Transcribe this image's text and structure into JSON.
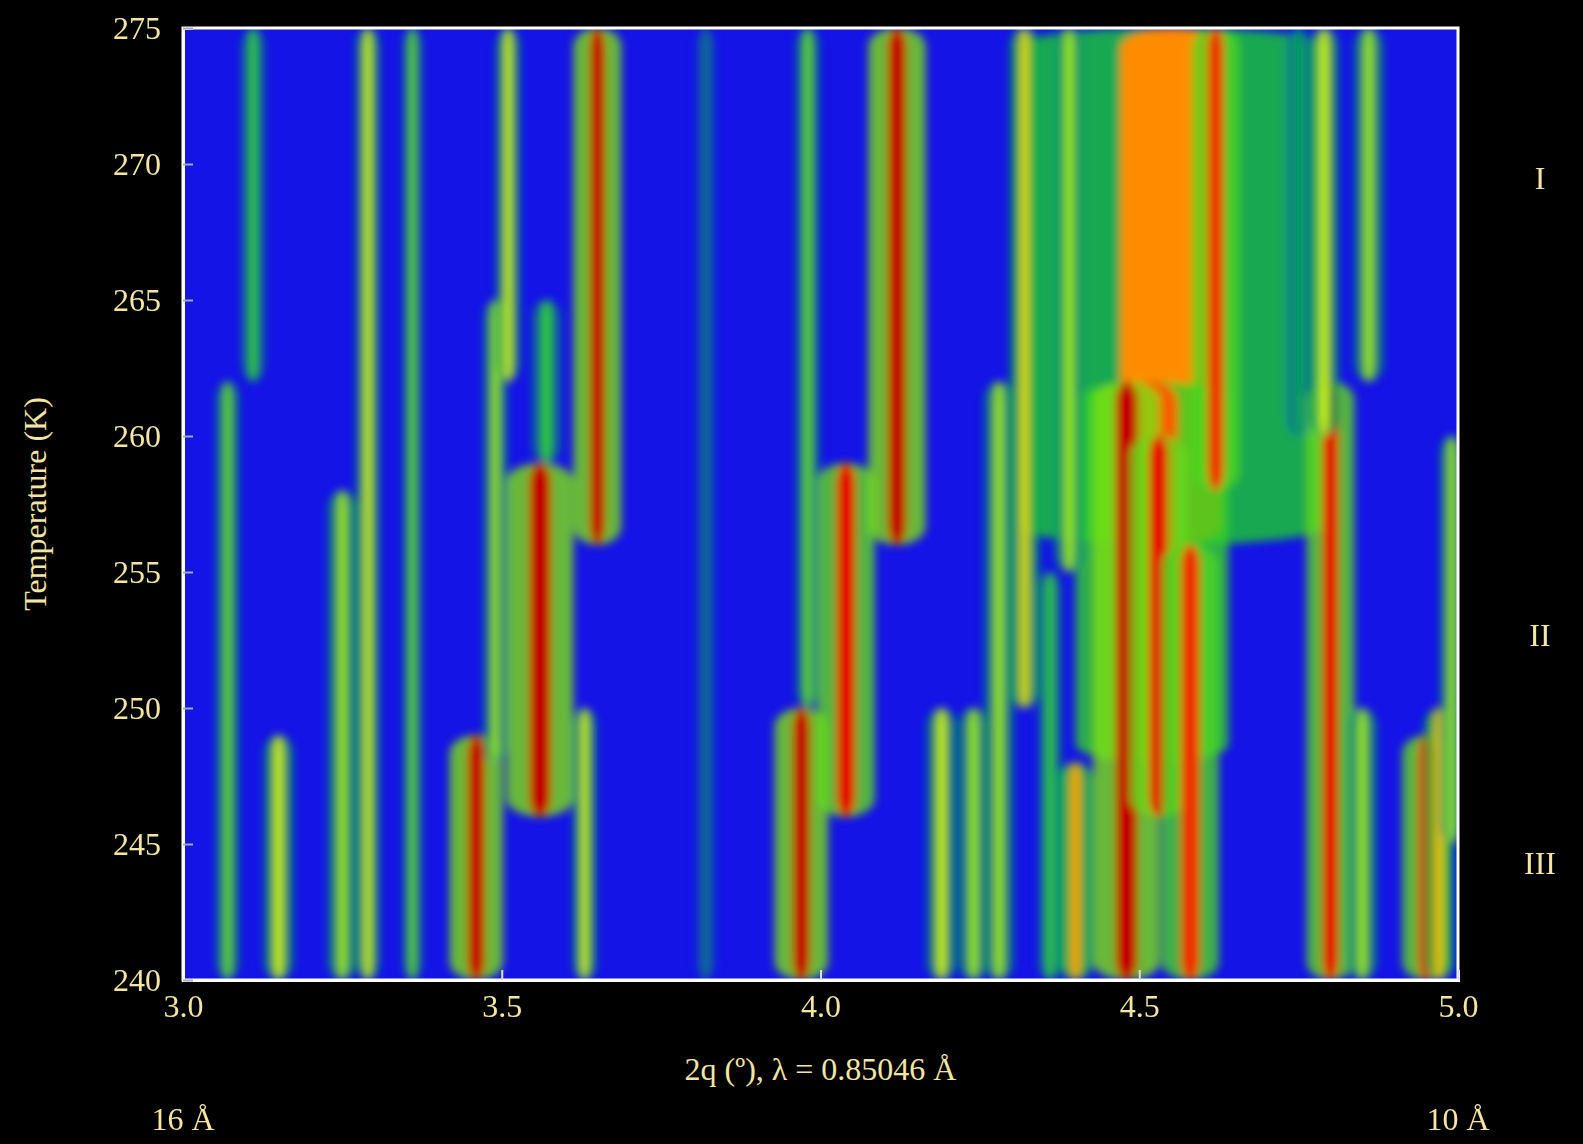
{
  "chart_data": {
    "type": "heatmap",
    "x_label": "2q  (º), λ = 0.85046 Å",
    "y_label": "Temperature (K)",
    "xlim": [
      3.0,
      5.0
    ],
    "ylim": [
      240,
      275
    ],
    "xticks": [
      {
        "value": 3.0,
        "label": "3.0"
      },
      {
        "value": 3.5,
        "label": "3.5"
      },
      {
        "value": 4.0,
        "label": "4.0"
      },
      {
        "value": 4.5,
        "label": "4.5"
      },
      {
        "value": 5.0,
        "label": "5.0"
      }
    ],
    "yticks": [
      240,
      245,
      250,
      255,
      260,
      265,
      270,
      275
    ],
    "zlim": [
      0,
      1
    ],
    "peaks": [
      {
        "x": 4.55,
        "t": [
          256,
          275
        ],
        "width": 0.16,
        "intensity": 0.75
      },
      {
        "x": 4.52,
        "t": [
          248,
          262
        ],
        "width": 0.08,
        "intensity": 0.8
      },
      {
        "x": 3.07,
        "t": [
          240,
          262
        ],
        "width": 0.012,
        "intensity": 0.45
      },
      {
        "x": 3.11,
        "t": [
          262,
          275
        ],
        "width": 0.012,
        "intensity": 0.4
      },
      {
        "x": 3.15,
        "t": [
          240,
          249
        ],
        "width": 0.015,
        "intensity": 0.55
      },
      {
        "x": 3.25,
        "t": [
          240,
          258
        ],
        "width": 0.015,
        "intensity": 0.5
      },
      {
        "x": 3.29,
        "t": [
          240,
          275
        ],
        "width": 0.012,
        "intensity": 0.55
      },
      {
        "x": 3.36,
        "t": [
          240,
          275
        ],
        "width": 0.01,
        "intensity": 0.45
      },
      {
        "x": 3.46,
        "t": [
          240,
          249
        ],
        "width": 0.028,
        "intensity": 0.95
      },
      {
        "x": 3.49,
        "t": [
          248,
          265
        ],
        "width": 0.012,
        "intensity": 0.5
      },
      {
        "x": 3.51,
        "t": [
          262,
          275
        ],
        "width": 0.012,
        "intensity": 0.55
      },
      {
        "x": 3.56,
        "t": [
          246,
          259
        ],
        "width": 0.035,
        "intensity": 0.95
      },
      {
        "x": 3.57,
        "t": [
          259,
          265
        ],
        "width": 0.015,
        "intensity": 0.4
      },
      {
        "x": 3.63,
        "t": [
          240,
          250
        ],
        "width": 0.012,
        "intensity": 0.55
      },
      {
        "x": 3.65,
        "t": [
          256,
          275
        ],
        "width": 0.025,
        "intensity": 0.95
      },
      {
        "x": 3.82,
        "t": [
          240,
          275
        ],
        "width": 0.01,
        "intensity": 0.2
      },
      {
        "x": 3.97,
        "t": [
          240,
          250
        ],
        "width": 0.028,
        "intensity": 0.95
      },
      {
        "x": 3.98,
        "t": [
          250,
          275
        ],
        "width": 0.012,
        "intensity": 0.45
      },
      {
        "x": 4.04,
        "t": [
          246,
          259
        ],
        "width": 0.03,
        "intensity": 0.9
      },
      {
        "x": 4.12,
        "t": [
          256,
          275
        ],
        "width": 0.03,
        "intensity": 0.95
      },
      {
        "x": 4.19,
        "t": [
          240,
          250
        ],
        "width": 0.015,
        "intensity": 0.55
      },
      {
        "x": 4.24,
        "t": [
          240,
          250
        ],
        "width": 0.015,
        "intensity": 0.5
      },
      {
        "x": 4.28,
        "t": [
          240,
          262
        ],
        "width": 0.015,
        "intensity": 0.5
      },
      {
        "x": 4.32,
        "t": [
          250,
          275
        ],
        "width": 0.015,
        "intensity": 0.6
      },
      {
        "x": 4.36,
        "t": [
          240,
          255
        ],
        "width": 0.012,
        "intensity": 0.4
      },
      {
        "x": 4.39,
        "t": [
          255,
          275
        ],
        "width": 0.015,
        "intensity": 0.5
      },
      {
        "x": 4.4,
        "t": [
          240,
          248
        ],
        "width": 0.018,
        "intensity": 0.7
      },
      {
        "x": 4.48,
        "t": [
          240,
          262
        ],
        "width": 0.035,
        "intensity": 0.95
      },
      {
        "x": 4.53,
        "t": [
          246,
          260
        ],
        "width": 0.03,
        "intensity": 0.9
      },
      {
        "x": 4.58,
        "t": [
          240,
          256
        ],
        "width": 0.03,
        "intensity": 0.85
      },
      {
        "x": 4.62,
        "t": [
          258,
          275
        ],
        "width": 0.025,
        "intensity": 0.85
      },
      {
        "x": 4.75,
        "t": [
          260,
          275
        ],
        "width": 0.012,
        "intensity": 0.3
      },
      {
        "x": 4.8,
        "t": [
          240,
          262
        ],
        "width": 0.025,
        "intensity": 0.9
      },
      {
        "x": 4.79,
        "t": [
          260,
          275
        ],
        "width": 0.015,
        "intensity": 0.55
      },
      {
        "x": 4.85,
        "t": [
          240,
          250
        ],
        "width": 0.015,
        "intensity": 0.5
      },
      {
        "x": 4.86,
        "t": [
          262,
          275
        ],
        "width": 0.015,
        "intensity": 0.5
      },
      {
        "x": 4.95,
        "t": [
          240,
          249
        ],
        "width": 0.025,
        "intensity": 0.9
      },
      {
        "x": 4.97,
        "t": [
          240,
          250
        ],
        "width": 0.015,
        "intensity": 0.65
      },
      {
        "x": 4.99,
        "t": [
          245,
          260
        ],
        "width": 0.012,
        "intensity": 0.5
      }
    ],
    "annotations": [
      {
        "text": "I",
        "y": 269.5
      },
      {
        "text": "II",
        "y": 252.7
      },
      {
        "text": "III",
        "y": 244.3
      }
    ],
    "bottom_labels": [
      {
        "text": "16 Å",
        "x": 3.0
      },
      {
        "text": "10 Å",
        "x": 5.0
      }
    ]
  }
}
